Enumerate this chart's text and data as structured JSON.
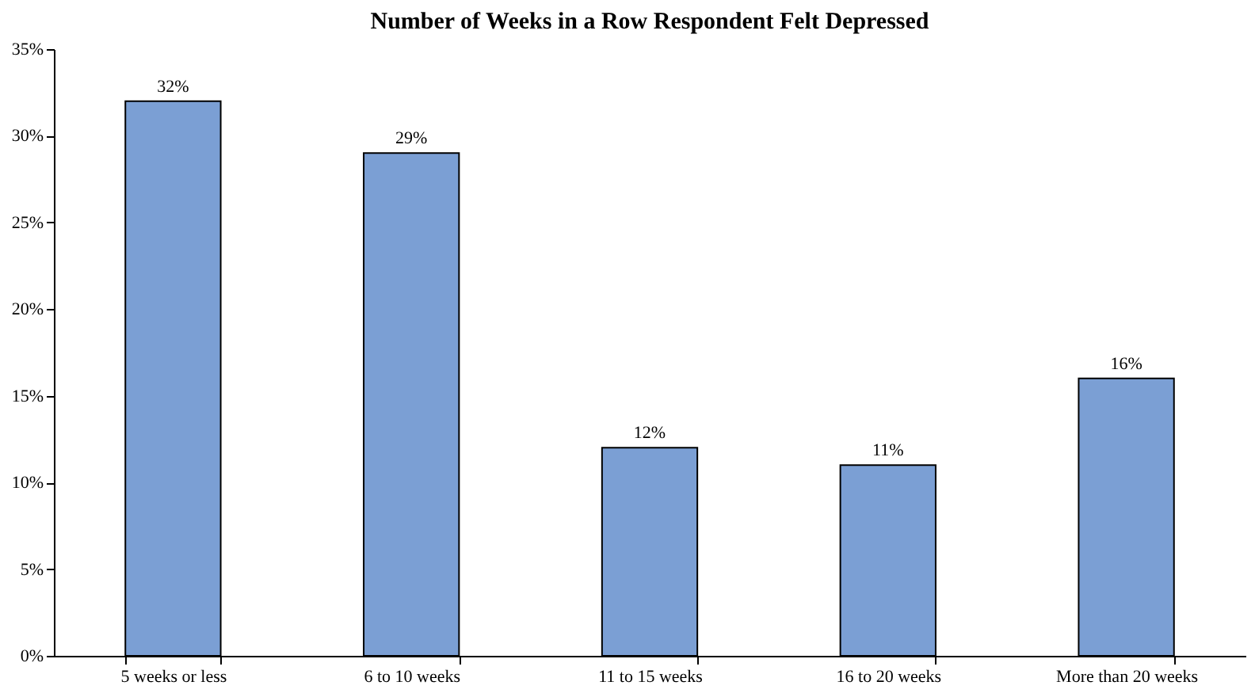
{
  "chart_data": {
    "type": "bar",
    "title": "Number of Weeks in a Row Respondent Felt Depressed",
    "categories": [
      "5 weeks or less",
      "6 to 10 weeks",
      "11 to 15 weeks",
      "16 to 20 weeks",
      "More than 20 weeks"
    ],
    "values": [
      32,
      29,
      12,
      11,
      16
    ],
    "value_labels": [
      "32%",
      "29%",
      "12%",
      "11%",
      "16%"
    ],
    "color": "#7b9fd4",
    "ylim": [
      0,
      35
    ],
    "yticks": [
      {
        "value": 0,
        "label": "0%"
      },
      {
        "value": 5,
        "label": "5%"
      },
      {
        "value": 10,
        "label": "10%"
      },
      {
        "value": 15,
        "label": "15%"
      },
      {
        "value": 20,
        "label": "20%"
      },
      {
        "value": 25,
        "label": "25%"
      },
      {
        "value": 30,
        "label": "30%"
      },
      {
        "value": 35,
        "label": "35%"
      }
    ],
    "grid": false
  }
}
